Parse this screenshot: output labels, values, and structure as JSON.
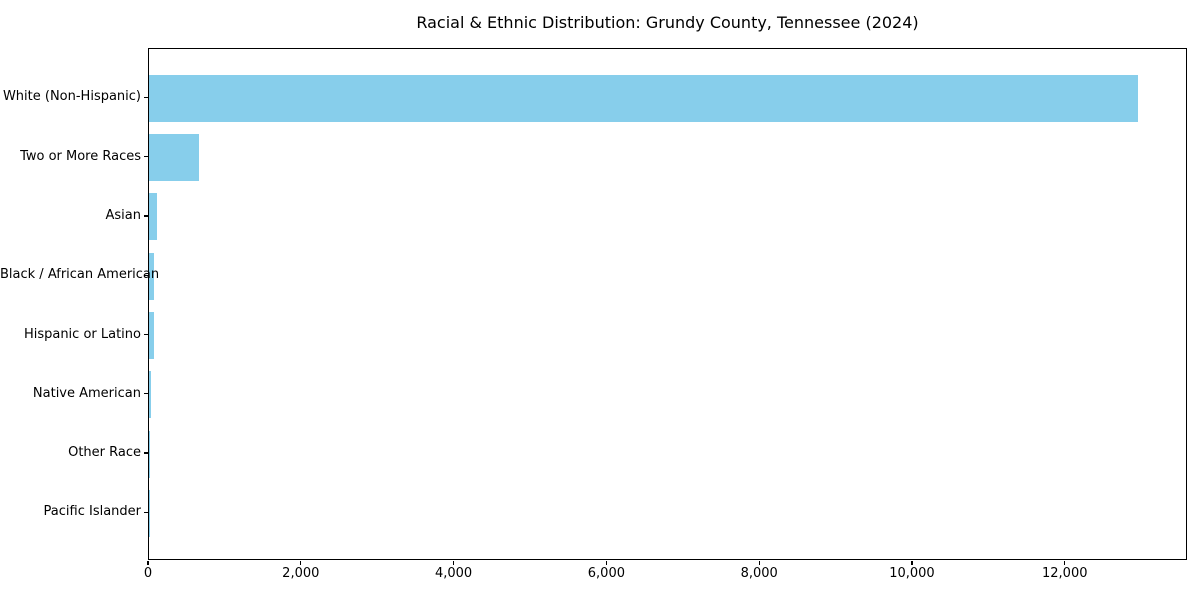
{
  "title": "Racial & Ethnic Distribution: Grundy County, Tennessee (2024)",
  "colors": {
    "bar": "#87CEEB",
    "axis": "#000000",
    "text": "#000000",
    "background": "#FFFFFF"
  },
  "chart_data": {
    "type": "bar",
    "orientation": "horizontal",
    "title": "Racial & Ethnic Distribution: Grundy County, Tennessee (2024)",
    "categories": [
      "White (Non-Hispanic)",
      "Two or More Races",
      "Asian",
      "Black / African American",
      "Hispanic or Latino",
      "Native American",
      "Other Race",
      "Pacific Islander"
    ],
    "values": [
      12950,
      650,
      105,
      65,
      60,
      20,
      10,
      3
    ],
    "xlabel": "",
    "ylabel": "",
    "xlim": [
      0,
      13600
    ],
    "xticks": [
      0,
      2000,
      4000,
      6000,
      8000,
      10000,
      12000
    ],
    "xtick_labels": [
      "0",
      "2,000",
      "4,000",
      "6,000",
      "8,000",
      "10,000",
      "12,000"
    ],
    "bar_color": "#87CEEB",
    "grid": false,
    "legend": null
  }
}
